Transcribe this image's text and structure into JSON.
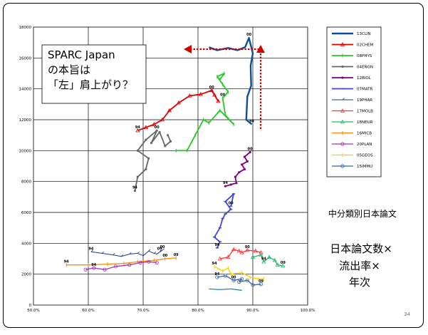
{
  "callout": {
    "lines": [
      "SPARC Japan",
      "の本旨は",
      "「左」肩上がり？"
    ]
  },
  "side_caption": "中分類別日本論文",
  "side_title_lines": [
    "日本論文数×",
    "流出率×",
    "年次"
  ],
  "slide_number": "34",
  "chart_data": {
    "type": "line",
    "title": "",
    "xlabel": "",
    "ylabel": "",
    "xlim": [
      50,
      100
    ],
    "ylim": [
      0,
      18000
    ],
    "x_ticks": [
      "50.0%",
      "60.0%",
      "70.0%",
      "80.0%",
      "90.0%",
      "100.0%"
    ],
    "y_ticks": [
      "0",
      "2000",
      "4000",
      "6000",
      "8000",
      "10000",
      "12000",
      "14000",
      "16000",
      "18000"
    ],
    "grid": true,
    "legend_position": "right",
    "series": [
      {
        "name": "13CLIN",
        "color": "#0b4f9c",
        "marker": "none",
        "width": 2.4,
        "labels": [
          {
            "text": "94",
            "at": "first"
          },
          {
            "text": "00",
            "at": 6
          }
        ],
        "points": [
          [
            89.8,
            11700
          ],
          [
            88.8,
            12000
          ],
          [
            89.0,
            13500
          ],
          [
            89.7,
            14200
          ],
          [
            89.6,
            15500
          ],
          [
            90.0,
            16300
          ],
          [
            89.3,
            17300
          ],
          [
            88.6,
            16700
          ],
          [
            87.2,
            16500
          ],
          [
            85.5,
            16650
          ],
          [
            83.5,
            16500
          ],
          [
            82.0,
            16700
          ]
        ]
      },
      {
        "name": "02CHEM",
        "color": "#e00000",
        "marker": "tri",
        "width": 1.8,
        "labels": [
          {
            "text": "94",
            "at": "first"
          },
          {
            "text": "00",
            "at": 8
          }
        ],
        "points": [
          [
            69.0,
            11300
          ],
          [
            70.5,
            11500
          ],
          [
            72.0,
            11700
          ],
          [
            73.5,
            12000
          ],
          [
            74.8,
            12600
          ],
          [
            76.5,
            13100
          ],
          [
            78.5,
            13550
          ],
          [
            80.5,
            13650
          ],
          [
            82.5,
            13900
          ],
          [
            83.7,
            13200
          ],
          [
            83.0,
            13600
          ]
        ]
      },
      {
        "name": "08PHYS",
        "color": "#22cc22",
        "marker": "bar",
        "width": 1.8,
        "labels": [
          {
            "text": "00",
            "at": 8
          }
        ],
        "points": [
          [
            76.0,
            10000
          ],
          [
            78.0,
            10000
          ],
          [
            79.5,
            11000
          ],
          [
            81.0,
            12000
          ],
          [
            82.0,
            11800
          ],
          [
            84.0,
            12600
          ],
          [
            86.5,
            11700
          ],
          [
            85.0,
            12300
          ],
          [
            84.5,
            13400
          ],
          [
            85.5,
            13800
          ],
          [
            84.5,
            14300
          ],
          [
            83.5,
            14800
          ],
          [
            84.8,
            15000
          ],
          [
            84.0,
            14600
          ]
        ]
      },
      {
        "name": "04ENGN",
        "color": "#666666",
        "marker": "dot",
        "width": 1.8,
        "labels": [
          {
            "text": "94",
            "at": "first"
          },
          {
            "text": "00",
            "at": 6
          }
        ],
        "points": [
          [
            68.5,
            7400
          ],
          [
            69.0,
            8300
          ],
          [
            70.5,
            8800
          ],
          [
            71.0,
            9500
          ],
          [
            69.0,
            10000
          ],
          [
            70.5,
            10700
          ],
          [
            72.5,
            11300
          ],
          [
            71.5,
            10500
          ],
          [
            73.0,
            11200
          ],
          [
            74.0,
            10300
          ],
          [
            75.0,
            10600
          ],
          [
            74.5,
            11000
          ]
        ]
      },
      {
        "name": "12BIOL",
        "color": "#800080",
        "marker": "dot",
        "width": 1.8,
        "labels": [
          {
            "text": "94",
            "at": "first"
          },
          {
            "text": "00",
            "at": 9
          }
        ],
        "points": [
          [
            85.0,
            7700
          ],
          [
            86.0,
            7800
          ],
          [
            87.0,
            7900
          ],
          [
            86.8,
            8300
          ],
          [
            87.5,
            8600
          ],
          [
            88.5,
            8800
          ],
          [
            88.0,
            9100
          ],
          [
            89.0,
            9300
          ],
          [
            88.5,
            9600
          ],
          [
            89.5,
            9900
          ]
        ]
      },
      {
        "name": "07MATR",
        "color": "#4444dd",
        "marker": "dash",
        "width": 1.8,
        "labels": [
          {
            "text": "94",
            "at": "first"
          },
          {
            "text": "00",
            "at": 9
          }
        ],
        "points": [
          [
            83.5,
            3700
          ],
          [
            84.0,
            4100
          ],
          [
            83.0,
            4400
          ],
          [
            84.0,
            5000
          ],
          [
            84.5,
            5600
          ],
          [
            85.0,
            5900
          ],
          [
            86.0,
            6200
          ],
          [
            85.0,
            6700
          ],
          [
            86.5,
            7200
          ],
          [
            86.0,
            6400
          ]
        ]
      },
      {
        "name": "19PHAR",
        "color": "#1a3a8a",
        "marker": "hook",
        "width": 1.0,
        "labels": [
          {
            "text": "94",
            "at": "first"
          },
          {
            "text": "00",
            "at": 10
          },
          {
            "text": "09",
            "at": "last"
          }
        ],
        "points": [
          [
            60.5,
            3450
          ],
          [
            62.5,
            3350
          ],
          [
            64.5,
            3250
          ],
          [
            66.0,
            3150
          ],
          [
            67.5,
            3300
          ],
          [
            69.0,
            3350
          ],
          [
            70.0,
            3200
          ],
          [
            71.0,
            3500
          ],
          [
            72.0,
            3350
          ],
          [
            72.5,
            3300
          ],
          [
            73.5,
            3550
          ],
          [
            73.0,
            3450
          ]
        ]
      },
      {
        "name": "17MOLB",
        "color": "#ff3333",
        "marker": "tri",
        "width": 1.3,
        "labels": [
          {
            "text": "00",
            "at": 5
          }
        ],
        "points": [
          [
            84.0,
            3000
          ],
          [
            85.5,
            3100
          ],
          [
            86.5,
            3600
          ],
          [
            87.5,
            3500
          ],
          [
            88.0,
            3400
          ],
          [
            89.0,
            3550
          ],
          [
            90.5,
            3500
          ],
          [
            91.5,
            3400
          ]
        ]
      },
      {
        "name": "18NEUR",
        "color": "#22bb66",
        "marker": "tri",
        "width": 1.3,
        "labels": [
          {
            "text": "94",
            "at": 2
          },
          {
            "text": "09",
            "at": "last"
          }
        ],
        "points": [
          [
            90.0,
            3100
          ],
          [
            91.5,
            3250
          ],
          [
            92.0,
            2800
          ],
          [
            93.0,
            3100
          ],
          [
            94.0,
            2900
          ],
          [
            94.5,
            2600
          ],
          [
            95.5,
            2550
          ]
        ]
      },
      {
        "name": "16MICB",
        "color": "#ff8800",
        "marker": "bar",
        "width": 1.3,
        "labels": [
          {
            "text": "94",
            "at": "first"
          },
          {
            "text": "00",
            "at": 6
          },
          {
            "text": "09",
            "at": "last"
          }
        ],
        "points": [
          [
            56.0,
            2600
          ],
          [
            60.0,
            2600
          ],
          [
            63.5,
            2650
          ],
          [
            66.5,
            2700
          ],
          [
            69.0,
            2800
          ],
          [
            72.0,
            2900
          ],
          [
            74.0,
            3000
          ],
          [
            76.0,
            3050
          ]
        ]
      },
      {
        "name": "20PLAN",
        "color": "#aa33aa",
        "marker": "circ",
        "width": 1.3,
        "labels": [
          {
            "text": "94",
            "at": 1
          }
        ],
        "points": [
          [
            59.5,
            2300
          ],
          [
            61.0,
            2400
          ],
          [
            63.0,
            2300
          ],
          [
            65.0,
            2500
          ],
          [
            67.5,
            2600
          ],
          [
            69.5,
            2750
          ],
          [
            71.0,
            2800
          ],
          [
            72.5,
            2750
          ]
        ]
      },
      {
        "name": "05GEOS",
        "color": "#ffcc00",
        "marker": "bar",
        "width": 1.3,
        "labels": [
          {
            "text": "94",
            "at": "first"
          }
        ],
        "points": [
          [
            83.0,
            2500
          ],
          [
            84.5,
            2200
          ],
          [
            85.5,
            2400
          ],
          [
            86.0,
            2000
          ],
          [
            88.0,
            2100
          ],
          [
            89.5,
            1800
          ],
          [
            91.0,
            1700
          ],
          [
            92.0,
            1700
          ]
        ]
      },
      {
        "name": "15IMMU",
        "color": "#3366aa",
        "marker": "circ",
        "width": 1.3,
        "labels": [
          {
            "text": "94",
            "at": "first"
          },
          {
            "text": "00",
            "at": 2
          },
          {
            "text": "09",
            "at": "last"
          }
        ],
        "points": [
          [
            83.5,
            1800
          ],
          [
            85.0,
            1900
          ],
          [
            86.5,
            1600
          ],
          [
            88.0,
            1700
          ],
          [
            87.5,
            1500
          ],
          [
            89.0,
            1600
          ],
          [
            90.0,
            1300
          ],
          [
            91.5,
            1350
          ]
        ]
      },
      {
        "name": "",
        "color": "#1a6fc8",
        "marker": "none",
        "width": 1.2,
        "legend": false,
        "labels": [],
        "points": [
          [
            82.0,
            1050
          ],
          [
            84.0,
            1000
          ],
          [
            86.0,
            1050
          ],
          [
            88.0,
            950
          ]
        ]
      }
    ]
  }
}
